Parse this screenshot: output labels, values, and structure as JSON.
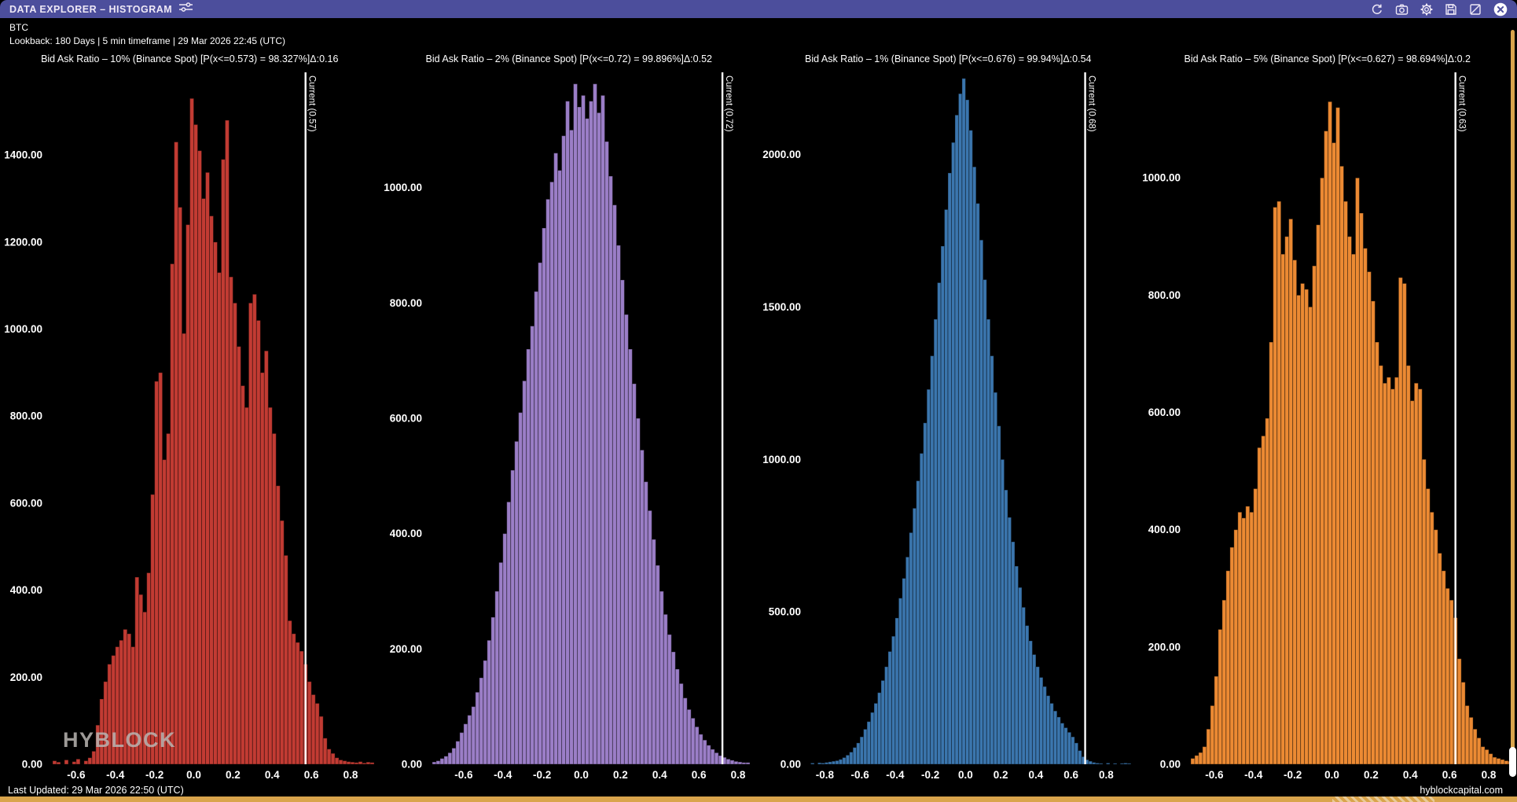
{
  "window": {
    "title": "DATA EXPLORER – HISTOGRAM",
    "titlebar_color": "#4c4e9c",
    "icons": [
      "sliders-icon",
      "refresh-icon",
      "screenshot-icon",
      "settings-icon",
      "save-icon",
      "export-icon",
      "close-icon"
    ]
  },
  "header": {
    "symbol": "BTC",
    "lookback": "Lookback: 180 Days | 5 min timeframe | 29 Mar 2026 22:45 (UTC)"
  },
  "statusbar": {
    "last_updated": "Last Updated: 29 Mar 2026 22:50 (UTC)",
    "site": "hyblockcapital.com"
  },
  "watermark": "HYBLOCK",
  "colors": {
    "accent_gold": "#d9a44c",
    "current_line": "#ffffff",
    "background": "#000000"
  },
  "chart_data": [
    {
      "type": "bar",
      "title": "Bid Ask Ratio – 10% (Binance Spot) [P(x<=0.573) = 98.327%]Δ:0.16",
      "color": "#c23b33",
      "current": {
        "value": 0.57,
        "label": "Current (0.57)"
      },
      "bin_start": -0.72,
      "bin_width": 0.02,
      "xlim": [
        -0.74,
        0.92
      ],
      "ylim": [
        0,
        1590
      ],
      "x_ticks": [
        -0.6,
        -0.4,
        -0.2,
        0.0,
        0.2,
        0.4,
        0.6,
        0.8
      ],
      "y_ticks": [
        0,
        200,
        400,
        600,
        800,
        1000,
        1200,
        1400
      ],
      "bins": [
        8,
        5,
        0,
        10,
        0,
        6,
        12,
        0,
        8,
        15,
        30,
        90,
        150,
        190,
        230,
        250,
        270,
        285,
        310,
        300,
        270,
        430,
        390,
        350,
        440,
        620,
        880,
        900,
        700,
        760,
        1150,
        1430,
        1280,
        990,
        1240,
        1530,
        1470,
        1410,
        1300,
        1360,
        1260,
        1200,
        1130,
        1390,
        1480,
        1120,
        1060,
        960,
        870,
        820,
        1060,
        1080,
        1020,
        900,
        950,
        820,
        760,
        640,
        560,
        480,
        330,
        300,
        280,
        260,
        230,
        190,
        160,
        140,
        110,
        60,
        35,
        25,
        15,
        10,
        8,
        6,
        5,
        4,
        6,
        3,
        5,
        4
      ]
    },
    {
      "type": "bar",
      "title": "Bid Ask Ratio – 2% (Binance Spot) [P(x<=0.72) = 99.896%]Δ:0.52",
      "color": "#9b7ec7",
      "current": {
        "value": 0.72,
        "label": "Current (0.72)"
      },
      "bin_start": -0.76,
      "bin_width": 0.02,
      "xlim": [
        -0.78,
        0.88
      ],
      "ylim": [
        0,
        1200
      ],
      "x_ticks": [
        -0.6,
        -0.4,
        -0.2,
        0.0,
        0.2,
        0.4,
        0.6,
        0.8
      ],
      "y_ticks": [
        0,
        200,
        400,
        600,
        800,
        1000
      ],
      "bins": [
        4,
        6,
        10,
        14,
        20,
        28,
        40,
        55,
        70,
        85,
        100,
        125,
        150,
        180,
        215,
        255,
        300,
        350,
        400,
        455,
        510,
        560,
        610,
        665,
        720,
        760,
        820,
        870,
        930,
        980,
        1010,
        1060,
        1030,
        1090,
        1150,
        1100,
        1180,
        1140,
        1160,
        1120,
        1150,
        1180,
        1130,
        1160,
        1080,
        1020,
        970,
        900,
        840,
        780,
        720,
        660,
        600,
        545,
        490,
        440,
        390,
        345,
        300,
        260,
        225,
        195,
        165,
        140,
        115,
        95,
        80,
        65,
        52,
        42,
        33,
        26,
        20,
        15,
        12,
        9,
        7,
        5,
        4,
        3,
        3
      ]
    },
    {
      "type": "bar",
      "title": "Bid Ask Ratio – 1% (Binance Spot) [P(x<=0.676) = 99.94%]Δ:0.54",
      "color": "#3b76ae",
      "current": {
        "value": 0.68,
        "label": "Current (0.68)"
      },
      "bin_start": -0.88,
      "bin_width": 0.02,
      "xlim": [
        -0.9,
        0.95
      ],
      "ylim": [
        0,
        2270
      ],
      "x_ticks": [
        -0.8,
        -0.6,
        -0.4,
        -0.2,
        0.0,
        0.2,
        0.4,
        0.6,
        0.8
      ],
      "y_ticks": [
        0,
        500,
        1000,
        1500,
        2000
      ],
      "bins": [
        4,
        0,
        5,
        4,
        6,
        8,
        10,
        12,
        16,
        22,
        30,
        40,
        55,
        70,
        90,
        115,
        140,
        170,
        200,
        235,
        275,
        320,
        370,
        420,
        480,
        545,
        610,
        680,
        760,
        840,
        930,
        1020,
        1120,
        1230,
        1340,
        1460,
        1580,
        1700,
        1820,
        1940,
        2040,
        2130,
        2200,
        2250,
        2180,
        2080,
        1960,
        1840,
        1720,
        1590,
        1460,
        1340,
        1220,
        1110,
        1000,
        900,
        810,
        730,
        650,
        580,
        515,
        455,
        405,
        360,
        320,
        285,
        255,
        225,
        200,
        175,
        155,
        135,
        120,
        105,
        90,
        70,
        45,
        25,
        15,
        10,
        6,
        4,
        3,
        0,
        4,
        0,
        3,
        0,
        3,
        4,
        3
      ]
    },
    {
      "type": "bar",
      "title": "Bid Ask Ratio – 5% (Binance Spot) [P(x<=0.627) = 98.694%]Δ:0.2",
      "color": "#ec8a33",
      "current": {
        "value": 0.63,
        "label": "Current (0.63)"
      },
      "bin_start": -0.72,
      "bin_width": 0.02,
      "xlim": [
        -0.74,
        0.92
      ],
      "ylim": [
        0,
        1180
      ],
      "x_ticks": [
        -0.6,
        -0.4,
        -0.2,
        0.0,
        0.2,
        0.4,
        0.6,
        0.8
      ],
      "y_ticks": [
        0,
        200,
        400,
        600,
        800,
        1000
      ],
      "bins": [
        10,
        15,
        20,
        30,
        60,
        100,
        150,
        230,
        280,
        330,
        370,
        400,
        430,
        420,
        440,
        430,
        470,
        540,
        560,
        590,
        720,
        950,
        960,
        870,
        900,
        930,
        860,
        800,
        820,
        810,
        780,
        850,
        920,
        1000,
        1080,
        1130,
        1060,
        1120,
        1020,
        960,
        900,
        870,
        1000,
        940,
        880,
        840,
        790,
        720,
        680,
        650,
        660,
        640,
        660,
        830,
        820,
        680,
        620,
        650,
        640,
        520,
        470,
        430,
        400,
        360,
        330,
        300,
        280,
        250,
        180,
        140,
        100,
        80,
        60,
        45,
        30,
        25,
        18,
        12,
        10,
        8,
        6,
        5
      ]
    }
  ]
}
